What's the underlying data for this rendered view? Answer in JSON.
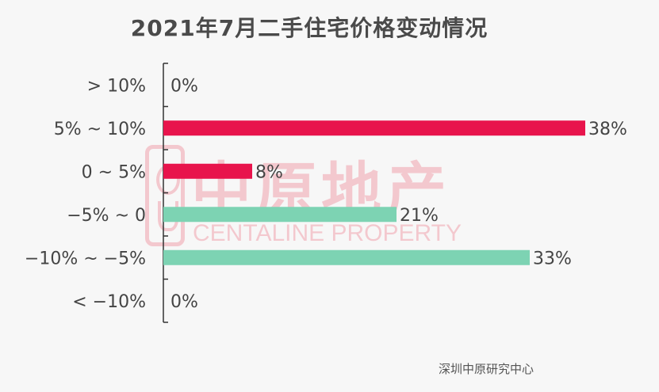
{
  "chart_data": {
    "type": "bar",
    "orientation": "horizontal",
    "title": "2021年7月二手住宅价格变动情况",
    "categories": [
      ">10%",
      "5%~10%",
      "0~5%",
      "-5%~0",
      "-10%~-5%",
      "<-10%"
    ],
    "display_labels": [
      "> 10%",
      "5% ~ 10%",
      "0 ~ 5%",
      "−5% ~ 0",
      "−10% ~ −5%",
      "< −10%"
    ],
    "values": [
      0,
      38,
      8,
      21,
      33,
      0
    ],
    "value_labels": [
      "0%",
      "38%",
      "8%",
      "21%",
      "33%",
      "0%"
    ],
    "unit": "%",
    "xlim": [
      0,
      38
    ],
    "colors": [
      "#e8144c",
      "#e8144c",
      "#e8144c",
      "#7dd3b3",
      "#7dd3b3",
      "#7dd3b3"
    ],
    "grid": false,
    "legend": "none"
  },
  "watermark": {
    "chinese": "中原地产",
    "english": "CENTALINE PROPERTY"
  },
  "source": "深圳中原研究中心"
}
